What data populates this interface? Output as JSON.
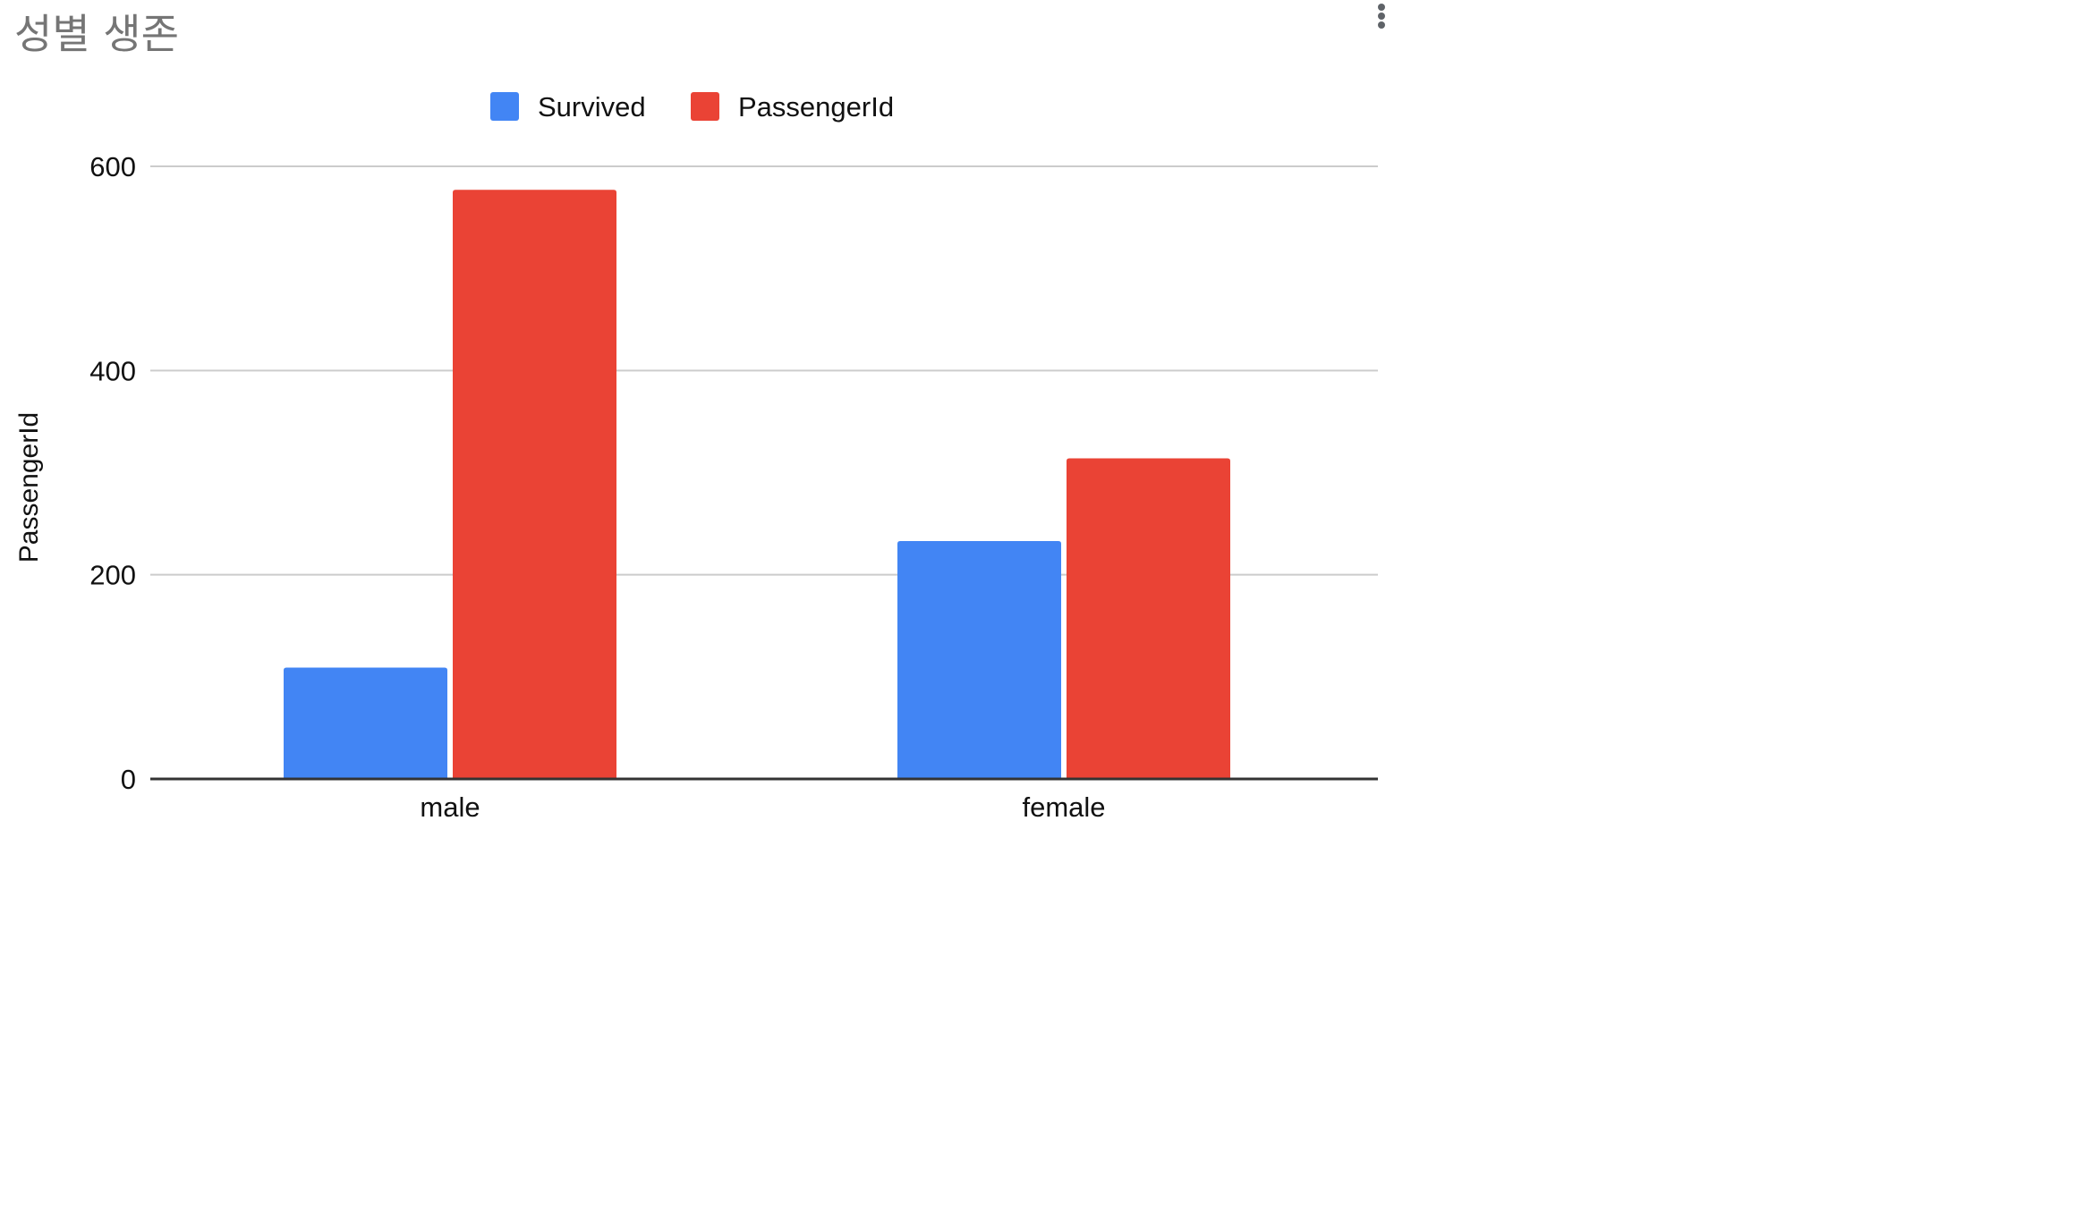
{
  "chart_data": {
    "type": "bar",
    "title": "성별 생존",
    "categories": [
      "male",
      "female"
    ],
    "series": [
      {
        "name": "Survived",
        "values": [
          109,
          233
        ],
        "color": "#4285f4"
      },
      {
        "name": "PassengerId",
        "values": [
          577,
          314
        ],
        "color": "#ea4335"
      }
    ],
    "xlabel": "",
    "ylabel": "PassengerId",
    "ylim": [
      0,
      600
    ],
    "yticks": [
      "0",
      "200",
      "400",
      "600"
    ],
    "grid": true,
    "legend_position": "top-center"
  },
  "menu": {
    "icon": "more-vert-icon"
  }
}
